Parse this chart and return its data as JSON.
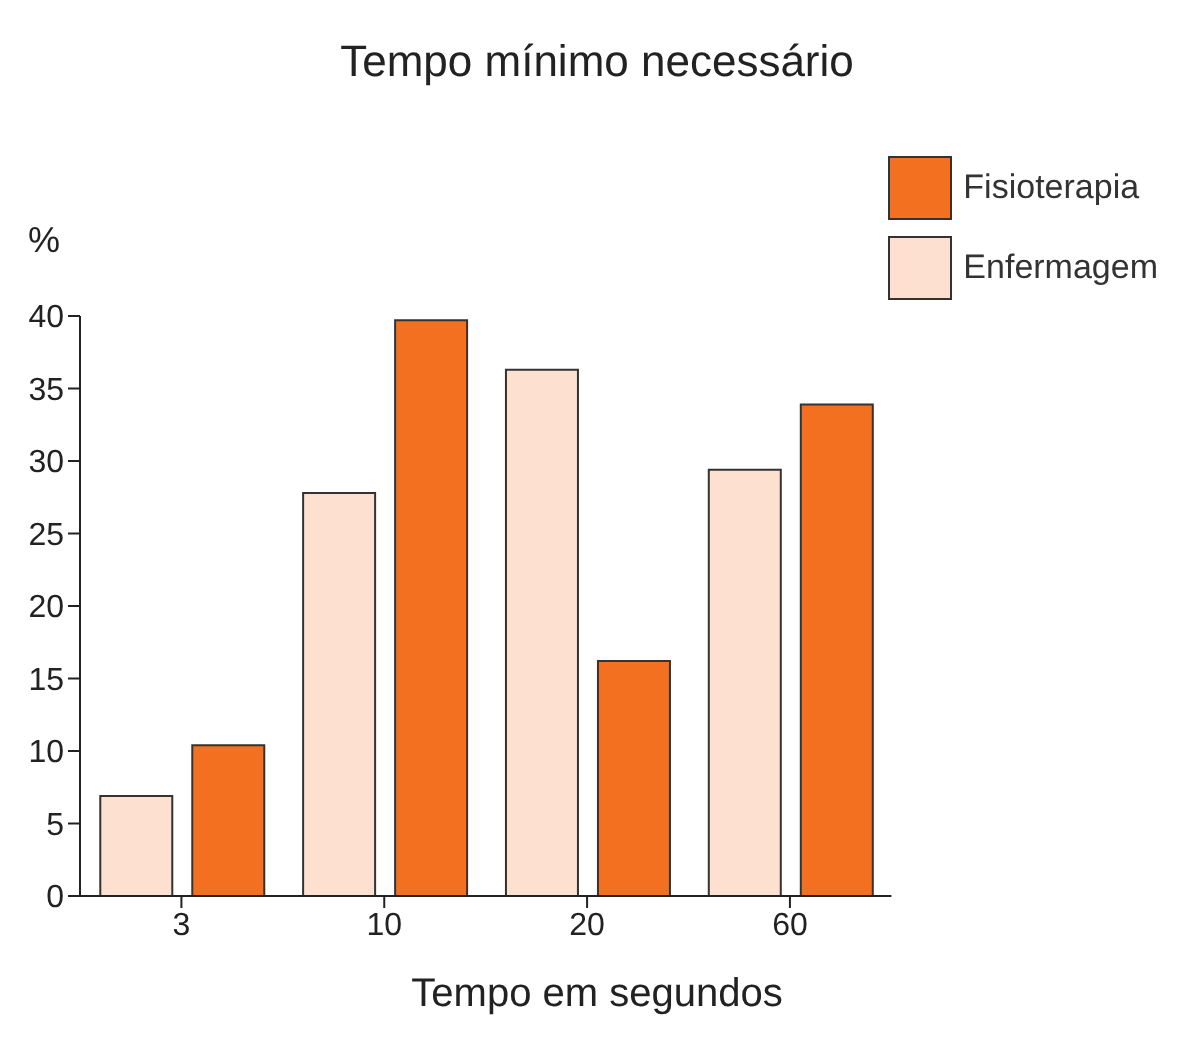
{
  "chart_data": {
    "type": "bar",
    "title": "Tempo mínimo necessário",
    "xlabel": "Tempo em segundos",
    "ylabel": "%",
    "categories": [
      "3",
      "10",
      "20",
      "60"
    ],
    "series": [
      {
        "name": "Enfermagem",
        "color": "#fde0d0",
        "values": [
          6.9,
          27.8,
          36.3,
          29.4
        ]
      },
      {
        "name": "Fisioterapia",
        "color": "#f37021",
        "values": [
          10.4,
          39.7,
          16.2,
          33.9
        ]
      }
    ],
    "ylim": [
      0,
      40
    ],
    "yticks": [
      0,
      5,
      10,
      15,
      20,
      25,
      30,
      35,
      40
    ],
    "grid": false,
    "legend": "top right"
  }
}
